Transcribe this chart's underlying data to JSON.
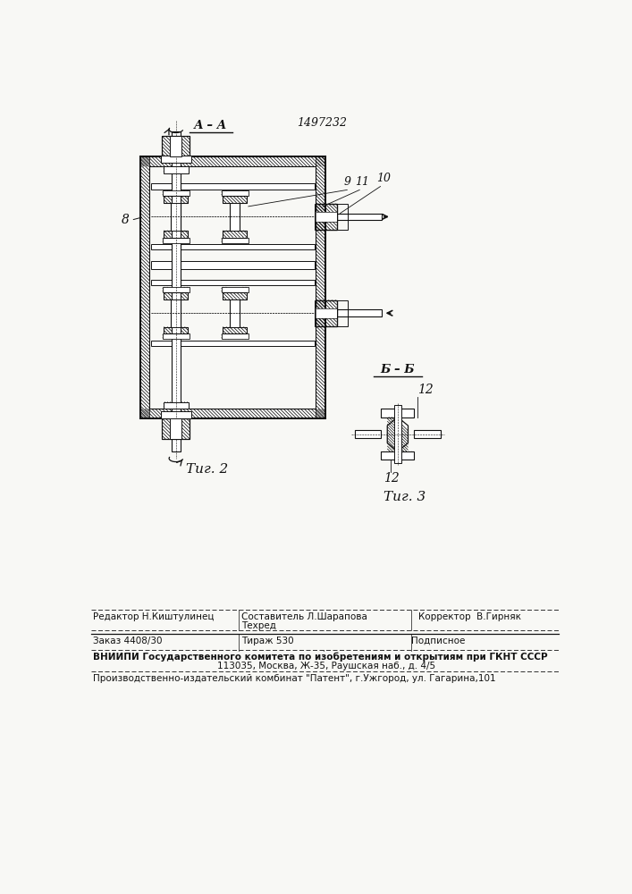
{
  "title": "1497232",
  "background_color": "#f8f8f5",
  "fig2_label": "Τиг. 2",
  "fig3_label": "Τиг. 3",
  "section_AA": "А – А",
  "section_BB": "Б – Б",
  "lbl8": "8",
  "lbl9": "9",
  "lbl10": "10",
  "lbl11": "11",
  "lbl12": "12",
  "footer_editor": "Редактор Н.Киштулинец",
  "footer_sostavitel": "Составитель Л.Шарапова",
  "footer_techred": "Техред",
  "footer_corrector": "Корректор  В.Гирняк",
  "footer_order": "Заказ 4408/30",
  "footer_tirazh": "Тираж 530",
  "footer_podpisnoe": "Подписное",
  "footer_vnipi": "ВНИИПИ Государственного комитета по изобретениям и открытиям при ГКНТ СССР",
  "footer_addr": "113035, Москва, Ж-35, Раушская наб., д. 4/5",
  "footer_production": "Производственно-издательский комбинат \"Патент\", г.Ужгород, ул. Гагарина,101"
}
